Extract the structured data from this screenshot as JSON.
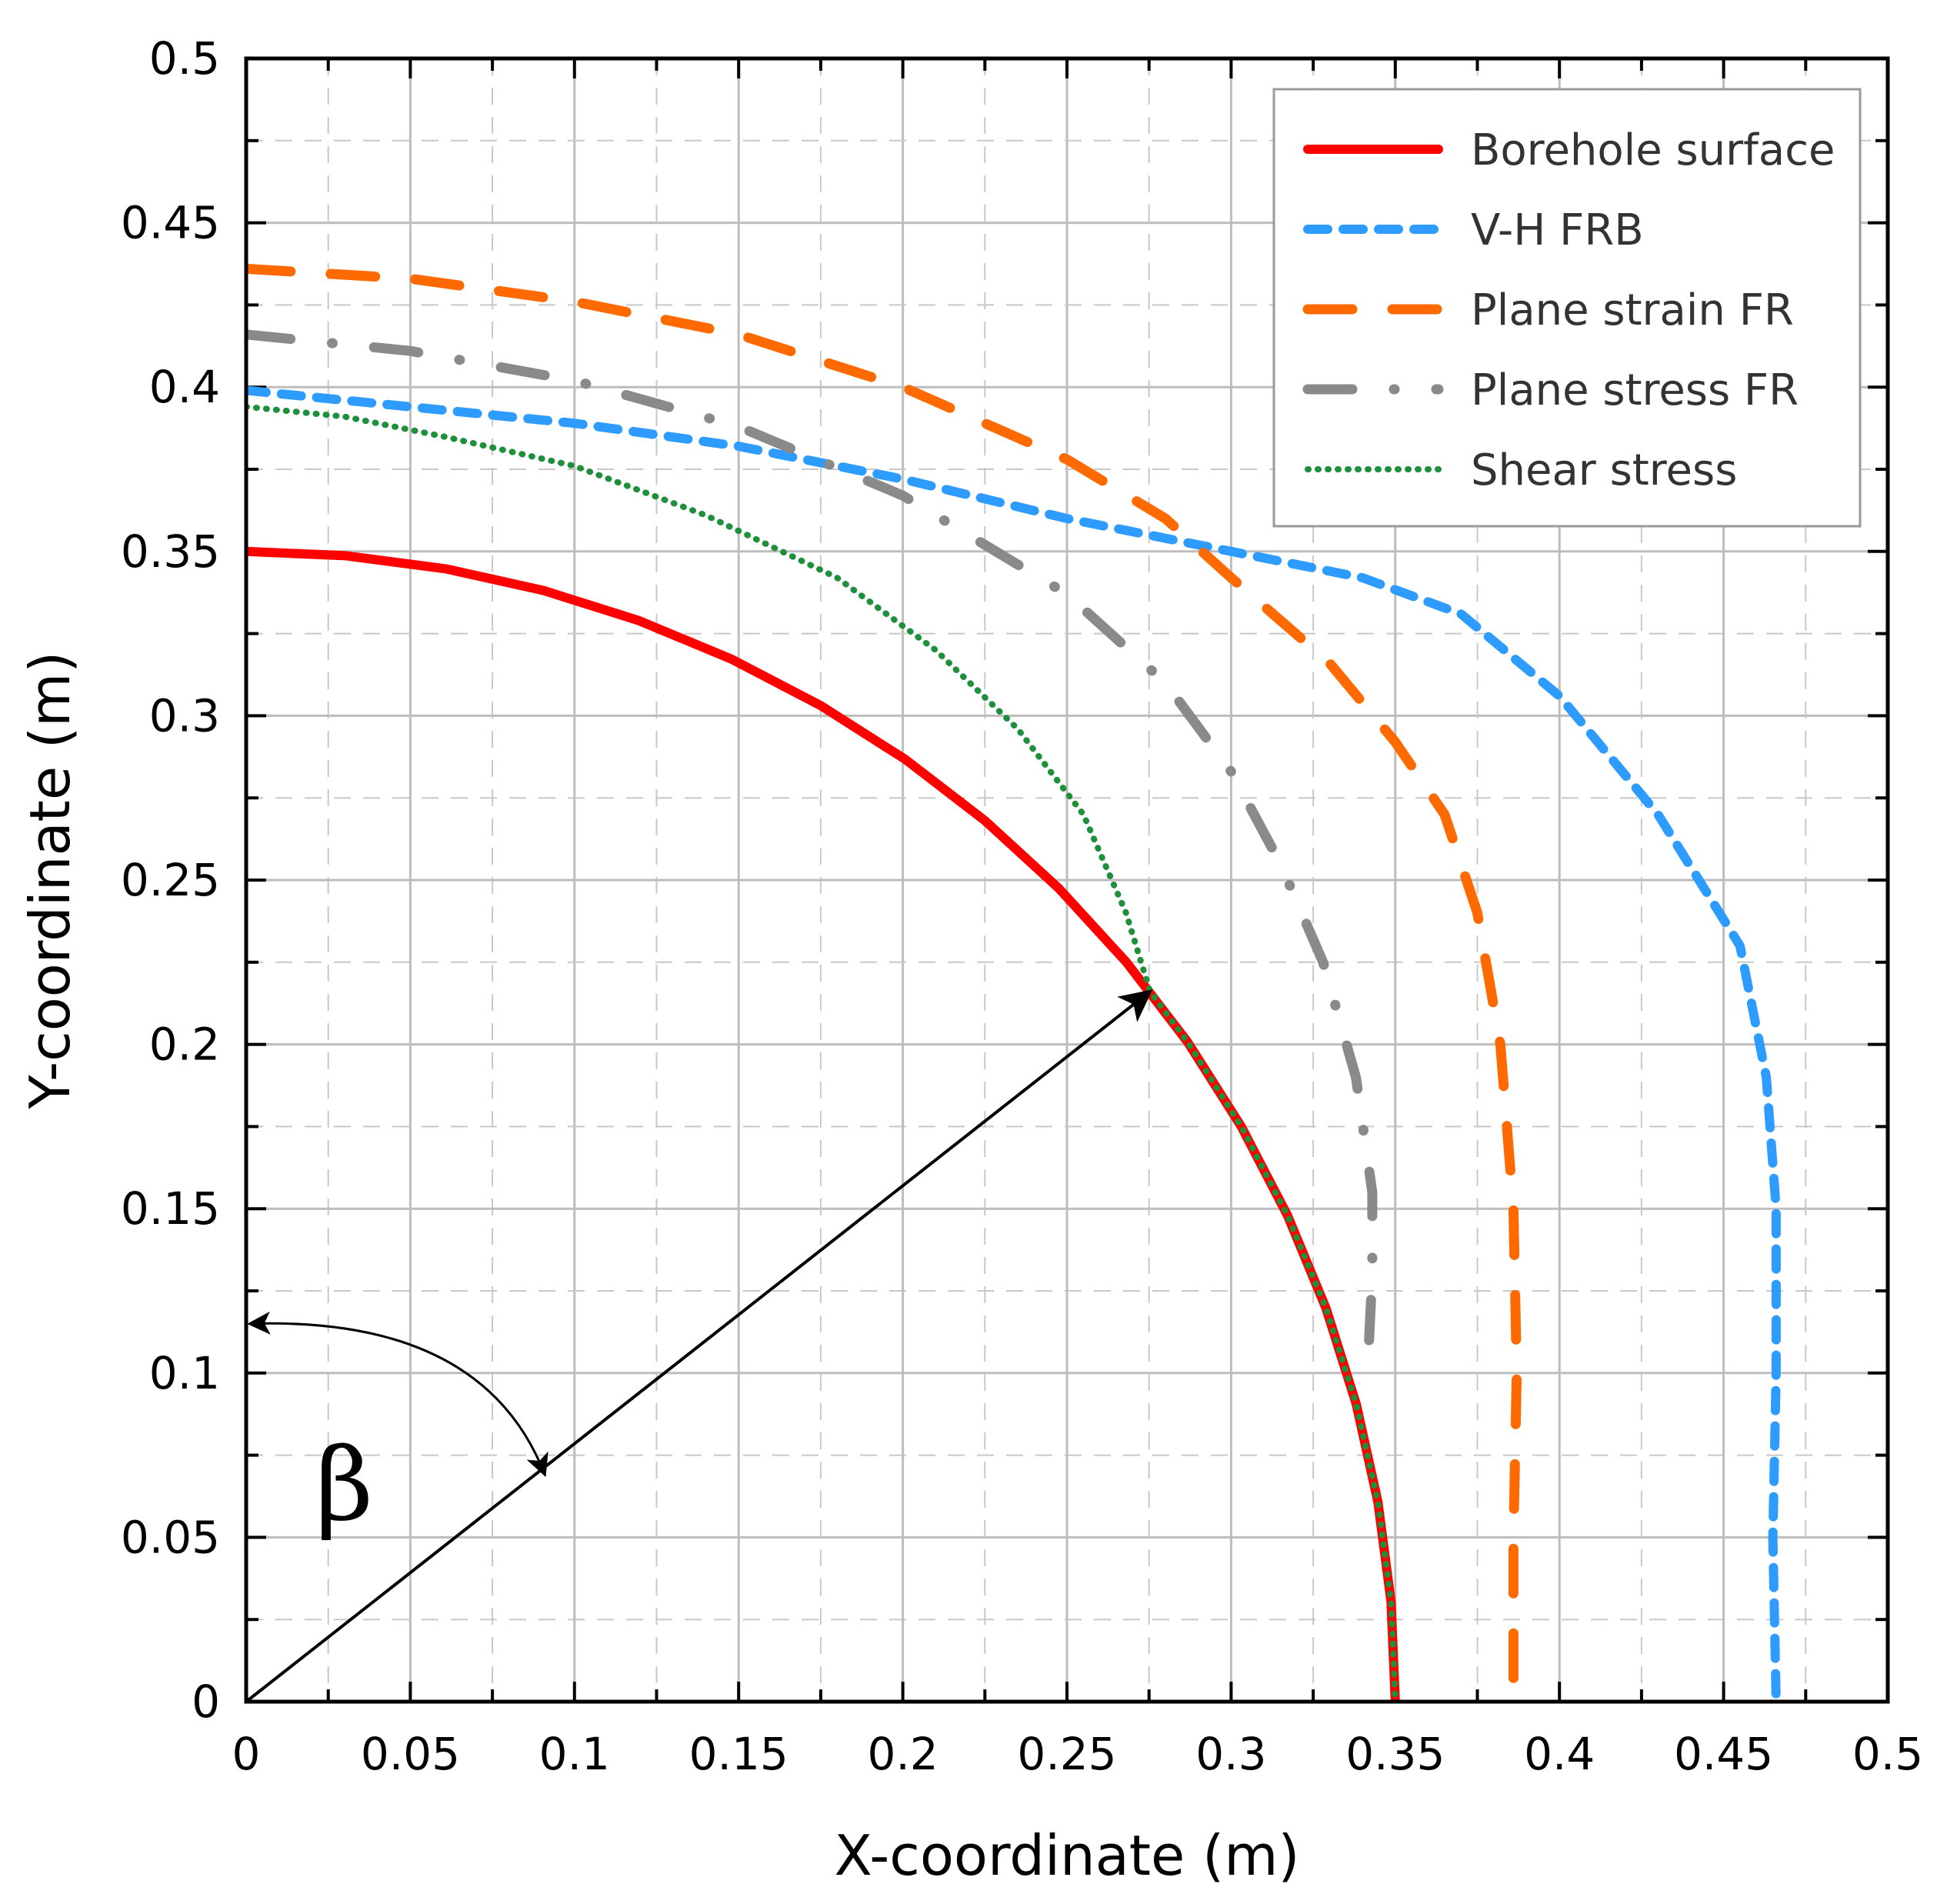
{
  "colors": {
    "borehole": "#ff0000",
    "vh_frb": "#2e9bff",
    "plane_strain": "#ff6a00",
    "plane_stress": "#8a8a8a",
    "shear": "#1e8f3a",
    "grid_major": "#bdbdbd",
    "grid_minor": "#c8c8c8",
    "annotation": "#000000"
  },
  "chart_data": {
    "type": "line",
    "title": "",
    "xlabel": "X-coordinate (m)",
    "ylabel": "Y-coordinate (m)",
    "xlim": [
      0,
      0.5
    ],
    "ylim": [
      0,
      0.5
    ],
    "x_ticks": [
      "0",
      "0.05",
      "0.1",
      "0.15",
      "0.2",
      "0.25",
      "0.3",
      "0.35",
      "0.4",
      "0.45",
      "0.5"
    ],
    "y_ticks": [
      "0",
      "0.05",
      "0.1",
      "0.15",
      "0.2",
      "0.25",
      "0.3",
      "0.35",
      "0.4",
      "0.45",
      "0.5"
    ],
    "grid": "major solid, minor dashed",
    "legend_position": "top-right",
    "series": [
      {
        "name": "Borehole surface",
        "style": "solid",
        "points": [
          [
            0,
            0.35
          ],
          [
            0.0304,
            0.3487
          ],
          [
            0.0608,
            0.3447
          ],
          [
            0.0906,
            0.3381
          ],
          [
            0.1197,
            0.3289
          ],
          [
            0.1479,
            0.3172
          ],
          [
            0.175,
            0.3031
          ],
          [
            0.2008,
            0.2867
          ],
          [
            0.225,
            0.2681
          ],
          [
            0.2475,
            0.2475
          ],
          [
            0.2681,
            0.225
          ],
          [
            0.2867,
            0.2008
          ],
          [
            0.3031,
            0.175
          ],
          [
            0.3172,
            0.1479
          ],
          [
            0.3289,
            0.1197
          ],
          [
            0.3381,
            0.0906
          ],
          [
            0.3447,
            0.0608
          ],
          [
            0.3487,
            0.0304
          ],
          [
            0.35,
            0
          ]
        ]
      },
      {
        "name": "V-H FRB",
        "style": "short dash",
        "points": [
          [
            0,
            0.399
          ],
          [
            0.05,
            0.394
          ],
          [
            0.1,
            0.389
          ],
          [
            0.15,
            0.382
          ],
          [
            0.2,
            0.372
          ],
          [
            0.25,
            0.36
          ],
          [
            0.3,
            0.35
          ],
          [
            0.34,
            0.342
          ],
          [
            0.37,
            0.331
          ],
          [
            0.4,
            0.306
          ],
          [
            0.43,
            0.27
          ],
          [
            0.455,
            0.23
          ],
          [
            0.463,
            0.19
          ],
          [
            0.466,
            0.15
          ],
          [
            0.466,
            0.1
          ],
          [
            0.465,
            0.05
          ],
          [
            0.466,
            0
          ]
        ]
      },
      {
        "name": "Plane strain FR",
        "style": "long dash",
        "points": [
          [
            0,
            0.436
          ],
          [
            0.05,
            0.433
          ],
          [
            0.1,
            0.426
          ],
          [
            0.15,
            0.416
          ],
          [
            0.2,
            0.4
          ],
          [
            0.25,
            0.378
          ],
          [
            0.28,
            0.36
          ],
          [
            0.3,
            0.342
          ],
          [
            0.33,
            0.316
          ],
          [
            0.35,
            0.292
          ],
          [
            0.365,
            0.27
          ],
          [
            0.375,
            0.24
          ],
          [
            0.382,
            0.2
          ],
          [
            0.386,
            0.15
          ],
          [
            0.387,
            0.1
          ],
          [
            0.386,
            0.05
          ],
          [
            0.386,
            0
          ]
        ]
      },
      {
        "name": "Plane stress FR",
        "style": "dash-dot",
        "points": [
          [
            0,
            0.416
          ],
          [
            0.05,
            0.411
          ],
          [
            0.1,
            0.402
          ],
          [
            0.15,
            0.388
          ],
          [
            0.2,
            0.367
          ],
          [
            0.25,
            0.337
          ],
          [
            0.28,
            0.31
          ],
          [
            0.3,
            0.283
          ],
          [
            0.315,
            0.255
          ],
          [
            0.328,
            0.225
          ],
          [
            0.338,
            0.19
          ],
          [
            0.343,
            0.155
          ],
          [
            0.343,
            0.13
          ],
          [
            0.342,
            0.11
          ]
        ]
      },
      {
        "name": "Shear stress",
        "style": "dotted",
        "points": [
          [
            0,
            0.394
          ],
          [
            0.03,
            0.391
          ],
          [
            0.06,
            0.385
          ],
          [
            0.1,
            0.376
          ],
          [
            0.14,
            0.361
          ],
          [
            0.18,
            0.342
          ],
          [
            0.21,
            0.32
          ],
          [
            0.235,
            0.296
          ],
          [
            0.255,
            0.27
          ],
          [
            0.268,
            0.24
          ],
          [
            0.2753,
            0.2161
          ],
          [
            0.2867,
            0.2008
          ],
          [
            0.3031,
            0.175
          ],
          [
            0.3172,
            0.1479
          ],
          [
            0.3289,
            0.1197
          ],
          [
            0.3381,
            0.0906
          ],
          [
            0.3447,
            0.0608
          ],
          [
            0.3487,
            0.0304
          ],
          [
            0.35,
            0
          ]
        ]
      }
    ],
    "annotations": {
      "radius_arrow": {
        "from": [
          0,
          0
        ],
        "to": [
          0.2753,
          0.2161
        ]
      },
      "angle_arc": {
        "start": [
          0.001,
          0.115
        ],
        "end": [
          0.091,
          0.069
        ]
      },
      "angle_label": "β"
    }
  }
}
